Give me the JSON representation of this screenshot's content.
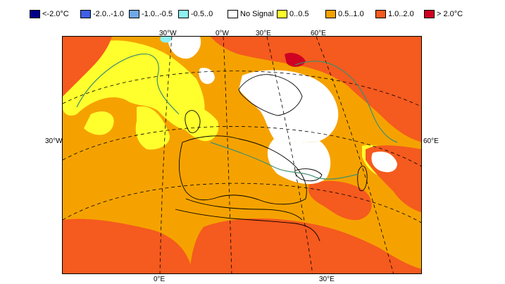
{
  "legend": {
    "items": [
      {
        "label": "<-2.0°C",
        "color": "#00008c"
      },
      {
        "label": "-2.0..-1.0",
        "color": "#3f5fe6"
      },
      {
        "label": "-1.0..-0.5",
        "color": "#6fa8e8"
      },
      {
        "label": "-0.5..0",
        "color": "#8ff2f2"
      },
      {
        "label": "No Signal",
        "color": "#ffffff"
      },
      {
        "label": "0..0.5",
        "color": "#ffff2e"
      },
      {
        "label": "0.5..1.0",
        "color": "#f5a200"
      },
      {
        "label": "1.0..2.0",
        "color": "#f55a1e"
      },
      {
        "label": "> 2.0°C",
        "color": "#cf0022"
      }
    ]
  },
  "map": {
    "top_ticks": [
      "30°W",
      "0°W",
      "30°E",
      "60°E"
    ],
    "bottom_ticks": [
      "0°E",
      "30°E"
    ],
    "left_ticks": [
      "30°W"
    ],
    "right_ticks": [
      "60°E"
    ],
    "colors": {
      "base": "#f5a200",
      "warm": "#f55a1e",
      "hot": "#cf0022",
      "mild": "#ffff2e",
      "none": "#ffffff",
      "cool": "#8ff2f2",
      "outline": "#000000",
      "significance": "#3f8f6f"
    }
  }
}
